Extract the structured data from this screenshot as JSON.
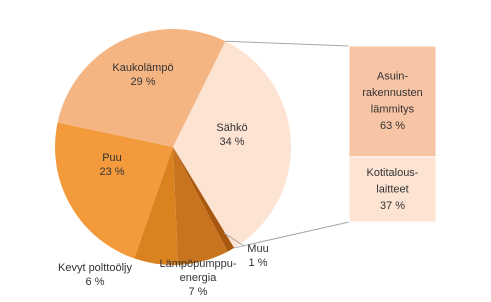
{
  "chart_data": {
    "type": "pie",
    "categories": [
      [
        "Sähkö"
      ],
      [
        "Muu"
      ],
      [
        "Lämpöpumppu-",
        "energia"
      ],
      [
        "Kevyt polttoöljy"
      ],
      [
        "Puu"
      ],
      [
        "Kaukolämpö"
      ]
    ],
    "values": [
      34,
      1,
      7,
      6,
      23,
      29
    ],
    "value_labels": [
      "34 %",
      "1 %",
      "7 %",
      "6 %",
      "23 %",
      "29 %"
    ],
    "colors": [
      "#fde3d2",
      "#a9590f",
      "#c8731d",
      "#d9821f",
      "#f39b3c",
      "#f5b583"
    ],
    "breakdown": {
      "categories": [
        [
          "Asuin-",
          "rakennusten",
          "lämmitys"
        ],
        [
          "Kotitalous-",
          "laitteet"
        ]
      ],
      "values": [
        63,
        37
      ],
      "value_labels": [
        "63 %",
        "37 %"
      ],
      "colors": [
        "#f8c4a6",
        "#fde3d2"
      ]
    }
  }
}
